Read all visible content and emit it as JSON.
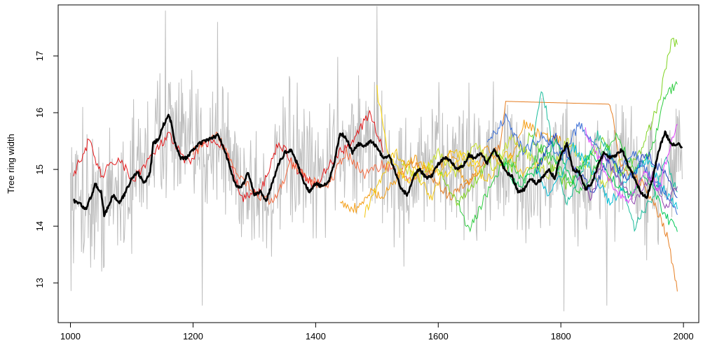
{
  "chart_data": {
    "type": "line",
    "title": "",
    "xlabel": "",
    "ylabel": "Tree ring width",
    "xlim": [
      980,
      2025
    ],
    "ylim": [
      12.3,
      17.9
    ],
    "grid": false,
    "legend": "none",
    "x_ticks": [
      1000,
      1200,
      1400,
      1600,
      1800,
      2000
    ],
    "x_tick_labels": [
      "1000",
      "1200",
      "1400",
      "1600",
      "1800",
      "2000"
    ],
    "y_ticks": [
      13,
      14,
      15,
      16,
      17
    ],
    "y_tick_labels": [
      "13",
      "14",
      "15",
      "16",
      "17"
    ],
    "background_series": {
      "color": "#bebebe",
      "x_range": [
        1000,
        1998
      ],
      "step": 1,
      "mean_profile": [
        [
          1000,
          14.5
        ],
        [
          1050,
          14.4
        ],
        [
          1100,
          14.8
        ],
        [
          1160,
          15.8
        ],
        [
          1200,
          15.2
        ],
        [
          1240,
          15.6
        ],
        [
          1280,
          14.8
        ],
        [
          1320,
          14.5
        ],
        [
          1360,
          15.2
        ],
        [
          1400,
          14.7
        ],
        [
          1440,
          15.6
        ],
        [
          1500,
          15.3
        ],
        [
          1540,
          14.7
        ],
        [
          1600,
          15.1
        ],
        [
          1700,
          15.2
        ],
        [
          1750,
          14.7
        ],
        [
          1800,
          15.3
        ],
        [
          1840,
          14.7
        ],
        [
          1900,
          15.2
        ],
        [
          1940,
          14.6
        ],
        [
          1998,
          15.4
        ]
      ],
      "spread": 0.9,
      "spikes": [
        [
          1020,
          16.1
        ],
        [
          1155,
          17.8
        ],
        [
          1240,
          17.6
        ],
        [
          1500,
          17.9
        ],
        [
          1805,
          17.9
        ],
        [
          1215,
          12.6
        ],
        [
          1805,
          12.5
        ],
        [
          1875,
          12.6
        ],
        [
          1940,
          13.4
        ]
      ]
    },
    "series": [
      {
        "color": "#e31a1c",
        "x": [
          1005,
          1030,
          1050,
          1080,
          1100,
          1130,
          1160,
          1190,
          1220,
          1250,
          1280,
          1310,
          1340,
          1370,
          1400,
          1430,
          1460,
          1490,
          1510
        ],
        "values": [
          14.9,
          15.5,
          14.9,
          15.2,
          14.8,
          15.2,
          15.6,
          15.1,
          15.5,
          15.4,
          14.5,
          14.6,
          15.5,
          15.0,
          14.7,
          15.2,
          15.5,
          16.0,
          15.3
        ]
      },
      {
        "color": "#f46d43",
        "x": [
          1200,
          1240,
          1270,
          1300,
          1330,
          1360,
          1390,
          1420,
          1450,
          1480,
          1510,
          1540,
          1570
        ],
        "values": [
          15.3,
          15.6,
          15.0,
          14.6,
          14.4,
          15.1,
          14.8,
          14.7,
          15.3,
          14.9,
          15.1,
          14.9,
          14.8
        ]
      },
      {
        "color": "#e67e22",
        "x": [
          1540,
          1580,
          1620,
          1660,
          1700,
          1710,
          1880,
          1900,
          1930,
          1960,
          1975,
          1990
        ],
        "values": [
          15.1,
          15.0,
          14.5,
          14.9,
          15.4,
          16.2,
          16.15,
          15.0,
          14.8,
          14.2,
          13.8,
          12.85
        ]
      },
      {
        "color": "#f39c12",
        "x": [
          1440,
          1470,
          1490,
          1510,
          1530,
          1560,
          1590,
          1620,
          1650,
          1680,
          1710,
          1740,
          1770,
          1800
        ],
        "values": [
          14.4,
          14.3,
          14.6,
          14.5,
          14.8,
          15.2,
          14.9,
          15.3,
          14.7,
          15.4,
          15.0,
          15.8,
          15.6,
          15.5
        ]
      },
      {
        "color": "#f1c40f",
        "x": [
          1480,
          1500,
          1530,
          1560,
          1590,
          1620,
          1650,
          1680,
          1710,
          1740,
          1770
        ],
        "values": [
          14.2,
          14.7,
          15.3,
          15.0,
          14.5,
          15.4,
          15.1,
          14.8,
          15.3,
          14.9,
          15.2
        ]
      },
      {
        "color": "#ffd700",
        "x": [
          1500,
          1520,
          1550,
          1580,
          1610,
          1640,
          1670
        ],
        "values": [
          16.4,
          15.2,
          14.8,
          15.1,
          14.9,
          15.3,
          15.0
        ]
      },
      {
        "color": "#c7e02a",
        "x": [
          1540,
          1570,
          1600,
          1630,
          1660,
          1690,
          1720,
          1750,
          1780,
          1810,
          1840,
          1870,
          1900
        ],
        "values": [
          15.1,
          14.8,
          15.3,
          14.9,
          15.5,
          15.0,
          15.6,
          15.2,
          14.9,
          15.5,
          15.1,
          14.7,
          15.2
        ]
      },
      {
        "color": "#7fd321",
        "x": [
          1600,
          1630,
          1660,
          1690,
          1720,
          1750,
          1780,
          1810,
          1840,
          1870,
          1900,
          1930,
          1960,
          1980,
          1990
        ],
        "values": [
          15.0,
          14.4,
          14.8,
          15.3,
          15.0,
          15.6,
          15.1,
          14.7,
          15.2,
          15.5,
          14.9,
          15.3,
          16.2,
          17.25,
          17.2
        ]
      },
      {
        "color": "#2ecc40",
        "x": [
          1630,
          1650,
          1680,
          1710,
          1740,
          1770,
          1800,
          1830,
          1860,
          1890,
          1920,
          1950,
          1970,
          1990
        ],
        "values": [
          14.5,
          13.9,
          14.6,
          15.2,
          14.8,
          15.4,
          15.0,
          14.6,
          15.1,
          15.6,
          15.0,
          15.4,
          16.3,
          16.5
        ]
      },
      {
        "color": "#00c957",
        "x": [
          1700,
          1730,
          1760,
          1790,
          1820,
          1850,
          1880,
          1910,
          1940,
          1970,
          1990
        ],
        "values": [
          15.2,
          14.7,
          15.0,
          15.5,
          14.8,
          15.3,
          14.9,
          14.5,
          14.9,
          14.2,
          13.9
        ]
      },
      {
        "color": "#1abc9c",
        "x": [
          1750,
          1770,
          1790,
          1810,
          1830,
          1860,
          1890,
          1920,
          1950,
          1970,
          1990
        ],
        "values": [
          15.3,
          16.4,
          15.2,
          14.4,
          14.9,
          15.6,
          15.1,
          14.0,
          14.5,
          15.2,
          14.6
        ]
      },
      {
        "color": "#00bcd4",
        "x": [
          1760,
          1780,
          1800,
          1820,
          1850,
          1880,
          1910,
          1940,
          1970,
          1990
        ],
        "values": [
          15.0,
          14.5,
          14.9,
          15.4,
          15.0,
          14.4,
          14.8,
          15.2,
          14.6,
          14.3
        ]
      },
      {
        "color": "#3b6fd6",
        "x": [
          1680,
          1710,
          1740,
          1770,
          1800,
          1830,
          1860,
          1890,
          1920,
          1950,
          1975,
          1990
        ],
        "values": [
          15.5,
          15.9,
          15.3,
          15.6,
          15.2,
          15.8,
          15.4,
          14.9,
          15.3,
          14.8,
          14.5,
          14.2
        ]
      },
      {
        "color": "#1f3fbf",
        "x": [
          1760,
          1790,
          1820,
          1850,
          1880,
          1910,
          1940,
          1970,
          1990
        ],
        "values": [
          15.0,
          15.6,
          15.1,
          14.6,
          15.2,
          14.8,
          15.3,
          14.9,
          14.5
        ]
      },
      {
        "color": "#8e44ad",
        "x": [
          1820,
          1850,
          1870,
          1890,
          1920,
          1950,
          1970,
          1990
        ],
        "values": [
          15.0,
          14.5,
          15.3,
          14.9,
          14.4,
          14.9,
          14.3,
          14.7
        ]
      },
      {
        "color": "#e040fb",
        "x": [
          1840,
          1860,
          1880,
          1910,
          1940,
          1960,
          1980,
          1990
        ],
        "values": [
          15.7,
          15.2,
          14.8,
          14.4,
          15.0,
          14.6,
          15.5,
          15.8
        ]
      }
    ],
    "mean_series": {
      "color": "#000000",
      "x": [
        1005,
        1015,
        1025,
        1035,
        1040,
        1050,
        1055,
        1060,
        1070,
        1080,
        1090,
        1100,
        1110,
        1120,
        1130,
        1135,
        1145,
        1150,
        1160,
        1165,
        1170,
        1180,
        1190,
        1200,
        1210,
        1220,
        1240,
        1250,
        1260,
        1270,
        1280,
        1290,
        1300,
        1310,
        1320,
        1330,
        1340,
        1350,
        1360,
        1370,
        1380,
        1390,
        1400,
        1410,
        1420,
        1430,
        1440,
        1450,
        1460,
        1470,
        1480,
        1490,
        1500,
        1510,
        1520,
        1530,
        1540,
        1550,
        1560,
        1570,
        1580,
        1590,
        1600,
        1610,
        1620,
        1630,
        1640,
        1650,
        1660,
        1670,
        1680,
        1690,
        1700,
        1710,
        1720,
        1730,
        1740,
        1750,
        1760,
        1770,
        1780,
        1790,
        1800,
        1810,
        1820,
        1830,
        1840,
        1850,
        1860,
        1870,
        1880,
        1890,
        1900,
        1910,
        1920,
        1930,
        1940,
        1950,
        1960,
        1970,
        1980,
        1990,
        1998
      ],
      "values": [
        14.45,
        14.4,
        14.3,
        14.55,
        14.75,
        14.6,
        14.2,
        14.3,
        14.55,
        14.4,
        14.6,
        14.85,
        14.95,
        14.75,
        14.95,
        15.45,
        15.55,
        15.75,
        15.95,
        15.8,
        15.5,
        15.2,
        15.2,
        15.35,
        15.45,
        15.5,
        15.6,
        15.4,
        15.05,
        14.7,
        14.7,
        14.95,
        14.55,
        14.6,
        14.45,
        14.8,
        15.1,
        15.3,
        15.35,
        15.1,
        14.8,
        14.6,
        14.75,
        14.7,
        14.75,
        15.1,
        15.65,
        15.55,
        15.3,
        15.45,
        15.4,
        15.5,
        15.4,
        15.2,
        15.25,
        14.95,
        14.65,
        14.55,
        14.9,
        15.0,
        14.85,
        14.9,
        15.1,
        15.2,
        15.15,
        15.0,
        15.05,
        15.25,
        15.2,
        15.3,
        15.1,
        15.35,
        15.2,
        14.95,
        14.9,
        14.6,
        14.65,
        14.85,
        14.75,
        14.85,
        15.0,
        14.85,
        15.25,
        15.45,
        15.0,
        14.95,
        14.65,
        14.75,
        15.05,
        15.3,
        15.2,
        15.25,
        15.35,
        15.05,
        14.85,
        14.6,
        14.5,
        14.85,
        15.35,
        15.65,
        15.45,
        15.45,
        15.4
      ]
    }
  }
}
